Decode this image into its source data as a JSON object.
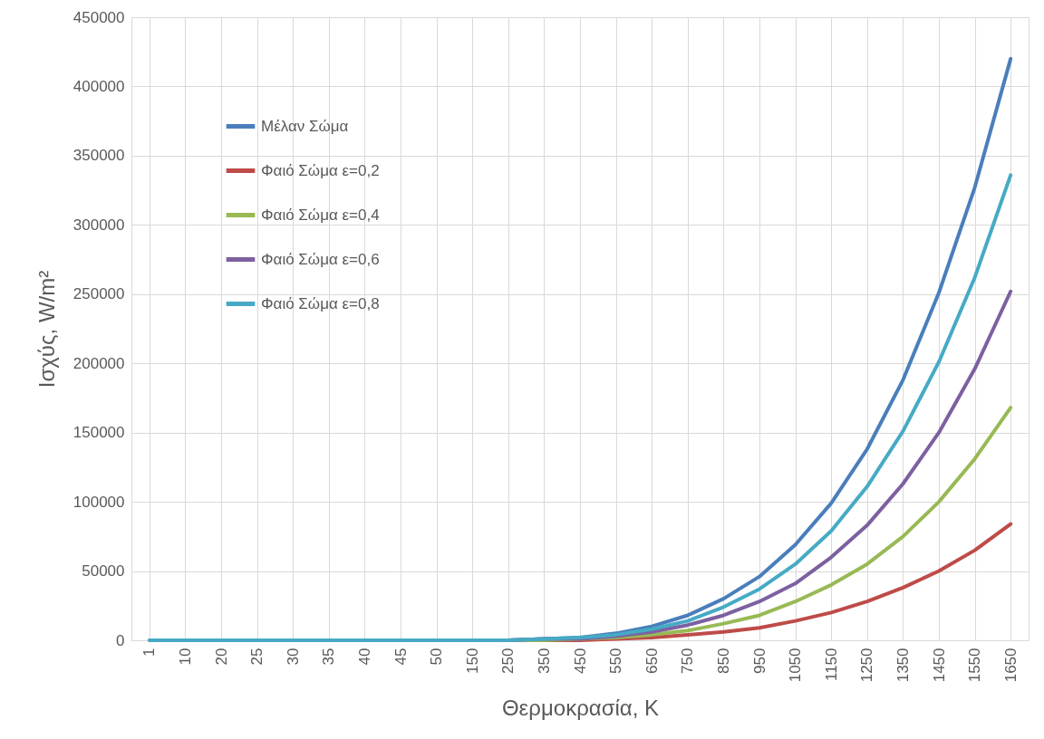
{
  "chart_data": {
    "type": "line",
    "xlabel": "Θερμοκρασία, K",
    "ylabel": "Ισχύς, W/m²",
    "categories": [
      "1",
      "10",
      "20",
      "25",
      "30",
      "35",
      "40",
      "45",
      "50",
      "150",
      "250",
      "350",
      "450",
      "550",
      "650",
      "750",
      "850",
      "950",
      "1050",
      "1150",
      "1250",
      "1350",
      "1450",
      "1550",
      "1650"
    ],
    "ylim": [
      0,
      450000
    ],
    "yticks": [
      0,
      50000,
      100000,
      150000,
      200000,
      250000,
      300000,
      350000,
      400000,
      450000
    ],
    "grid": true,
    "legend": "top left",
    "line_style": "solid",
    "marker": "none",
    "series": [
      {
        "name": "Μέλαν Σώμα",
        "color": "#4a7ebb",
        "values": [
          null,
          null,
          null,
          null,
          null,
          null,
          null,
          null,
          null,
          0,
          0,
          1000,
          2000,
          5000,
          10000,
          18000,
          30000,
          46000,
          69000,
          99000,
          138000,
          188000,
          251000,
          327000,
          420000
        ]
      },
      {
        "name": "Φαιό Σώμα ε=0,2",
        "color": "#be4b48",
        "values": [
          null,
          null,
          null,
          null,
          null,
          null,
          null,
          null,
          null,
          null,
          0,
          0,
          0,
          1000,
          2000,
          4000,
          6000,
          9000,
          14000,
          20000,
          28000,
          38000,
          50000,
          65000,
          84000
        ]
      },
      {
        "name": "Φαιό Σώμα ε=0,4",
        "color": "#98b954",
        "values": [
          null,
          null,
          null,
          null,
          null,
          null,
          null,
          null,
          null,
          0,
          0,
          0,
          1000,
          2000,
          4000,
          7000,
          12000,
          18000,
          28000,
          40000,
          55000,
          75000,
          100000,
          131000,
          168000
        ]
      },
      {
        "name": "Φαιό Σώμα ε=0,6",
        "color": "#7d60a0",
        "values": [
          null,
          null,
          null,
          null,
          null,
          null,
          null,
          null,
          null,
          0,
          0,
          1000,
          1000,
          3000,
          6000,
          11000,
          18000,
          28000,
          41000,
          60000,
          83000,
          113000,
          150000,
          196000,
          252000
        ]
      },
      {
        "name": "Φαιό Σώμα ε=0,8",
        "color": "#46aac5",
        "values": [
          0,
          0,
          0,
          0,
          0,
          0,
          0,
          0,
          0,
          0,
          0,
          1000,
          2000,
          4000,
          8000,
          14000,
          24000,
          37000,
          55000,
          79000,
          111000,
          151000,
          201000,
          262000,
          336000
        ]
      }
    ]
  }
}
